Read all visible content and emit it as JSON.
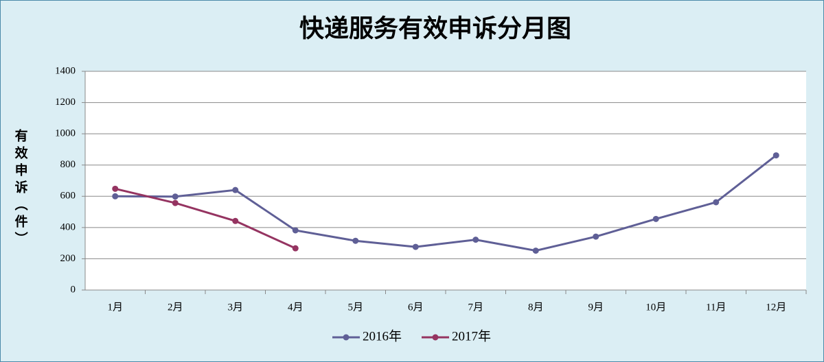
{
  "chart_data": {
    "type": "line",
    "title": "快递服务有效申诉分月图",
    "y_label": "有效申诉（件）",
    "categories": [
      "1月",
      "2月",
      "3月",
      "4月",
      "5月",
      "6月",
      "7月",
      "8月",
      "9月",
      "10月",
      "11月",
      "12月"
    ],
    "series": [
      {
        "name": "2016年",
        "color": "#5f5f96",
        "values": [
          600,
          598,
          640,
          382,
          315,
          276,
          322,
          252,
          342,
          455,
          562,
          862
        ]
      },
      {
        "name": "2017年",
        "color": "#953461",
        "values": [
          648,
          557,
          442,
          267,
          null,
          null,
          null,
          null,
          null,
          null,
          null,
          null
        ]
      }
    ],
    "ylim": [
      0,
      1400
    ],
    "yticks": [
      0,
      200,
      400,
      600,
      800,
      1000,
      1200,
      1400
    ],
    "grid": true,
    "legend": "bottom"
  }
}
